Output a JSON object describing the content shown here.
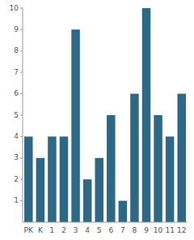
{
  "chart_data": {
    "type": "bar",
    "categories": [
      "PK",
      "K",
      "1",
      "2",
      "3",
      "4",
      "5",
      "6",
      "7",
      "8",
      "9",
      "10",
      "11",
      "12"
    ],
    "values": [
      4,
      3,
      4,
      4,
      9,
      2,
      3,
      5,
      1,
      6,
      10,
      5,
      4,
      6
    ],
    "color": "#2e6887",
    "ylim": [
      0,
      10
    ],
    "yticks": [
      1,
      2,
      3,
      4,
      5,
      6,
      7,
      8,
      9,
      10
    ],
    "grid": false
  }
}
